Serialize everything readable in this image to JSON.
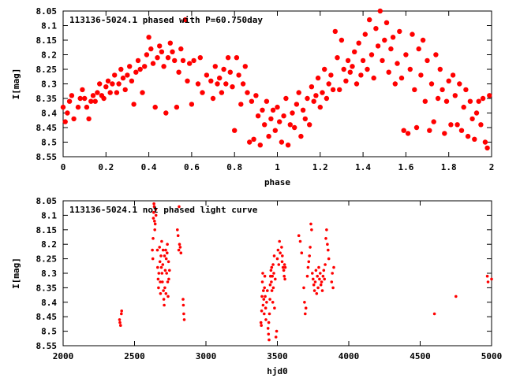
{
  "chart_data": [
    {
      "type": "scatter",
      "title": "113136-5024.1 phased with P=60.750day",
      "xlabel": "phase",
      "ylabel": "I[mag]",
      "xlim": [
        0,
        2
      ],
      "ylim": [
        8.05,
        8.55
      ],
      "y_inverted": true,
      "xticks": [
        "0",
        "0.2",
        "0.4",
        "0.6",
        "0.8",
        "1",
        "1.2",
        "1.4",
        "1.6",
        "1.8",
        "2"
      ],
      "yticks": [
        "8.05",
        "8.1",
        "8.15",
        "8.2",
        "8.25",
        "8.3",
        "8.35",
        "8.4",
        "8.45",
        "8.5",
        "8.55"
      ],
      "marker": "filled circle",
      "color": "#ff0000",
      "points": [
        [
          0.0,
          8.38
        ],
        [
          0.01,
          8.43
        ],
        [
          0.02,
          8.4
        ],
        [
          0.03,
          8.36
        ],
        [
          0.04,
          8.34
        ],
        [
          0.05,
          8.42
        ],
        [
          0.07,
          8.38
        ],
        [
          0.08,
          8.35
        ],
        [
          0.09,
          8.32
        ],
        [
          0.1,
          8.35
        ],
        [
          0.11,
          8.38
        ],
        [
          0.12,
          8.42
        ],
        [
          0.13,
          8.36
        ],
        [
          0.14,
          8.34
        ],
        [
          0.15,
          8.36
        ],
        [
          0.16,
          8.33
        ],
        [
          0.17,
          8.3
        ],
        [
          0.18,
          8.34
        ],
        [
          0.19,
          8.35
        ],
        [
          0.2,
          8.31
        ],
        [
          0.21,
          8.29
        ],
        [
          0.22,
          8.33
        ],
        [
          0.23,
          8.3
        ],
        [
          0.24,
          8.27
        ],
        [
          0.25,
          8.33
        ],
        [
          0.26,
          8.3
        ],
        [
          0.27,
          8.25
        ],
        [
          0.28,
          8.28
        ],
        [
          0.29,
          8.32
        ],
        [
          0.3,
          8.27
        ],
        [
          0.31,
          8.24
        ],
        [
          0.32,
          8.29
        ],
        [
          0.33,
          8.37
        ],
        [
          0.34,
          8.26
        ],
        [
          0.35,
          8.22
        ],
        [
          0.36,
          8.25
        ],
        [
          0.37,
          8.33
        ],
        [
          0.38,
          8.24
        ],
        [
          0.39,
          8.2
        ],
        [
          0.4,
          8.14
        ],
        [
          0.41,
          8.18
        ],
        [
          0.42,
          8.23
        ],
        [
          0.43,
          8.38
        ],
        [
          0.44,
          8.21
        ],
        [
          0.45,
          8.17
        ],
        [
          0.46,
          8.19
        ],
        [
          0.47,
          8.24
        ],
        [
          0.48,
          8.4
        ],
        [
          0.49,
          8.21
        ],
        [
          0.5,
          8.16
        ],
        [
          0.51,
          8.19
        ],
        [
          0.52,
          8.22
        ],
        [
          0.53,
          8.38
        ],
        [
          0.54,
          8.26
        ],
        [
          0.55,
          8.18
        ],
        [
          0.56,
          8.22
        ],
        [
          0.57,
          8.08
        ],
        [
          0.58,
          8.29
        ],
        [
          0.59,
          8.23
        ],
        [
          0.6,
          8.37
        ],
        [
          0.61,
          8.22
        ],
        [
          0.63,
          8.3
        ],
        [
          0.64,
          8.21
        ],
        [
          0.65,
          8.33
        ],
        [
          0.67,
          8.27
        ],
        [
          0.69,
          8.29
        ],
        [
          0.7,
          8.35
        ],
        [
          0.71,
          8.24
        ],
        [
          0.72,
          8.3
        ],
        [
          0.73,
          8.28
        ],
        [
          0.74,
          8.33
        ],
        [
          0.75,
          8.25
        ],
        [
          0.76,
          8.3
        ],
        [
          0.77,
          8.21
        ],
        [
          0.78,
          8.26
        ],
        [
          0.79,
          8.31
        ],
        [
          0.8,
          8.46
        ],
        [
          0.81,
          8.21
        ],
        [
          0.82,
          8.27
        ],
        [
          0.83,
          8.37
        ],
        [
          0.84,
          8.3
        ],
        [
          0.85,
          8.24
        ],
        [
          0.86,
          8.33
        ],
        [
          0.87,
          8.5
        ],
        [
          0.88,
          8.36
        ],
        [
          0.89,
          8.49
        ],
        [
          0.9,
          8.34
        ],
        [
          0.91,
          8.41
        ],
        [
          0.92,
          8.51
        ],
        [
          0.93,
          8.39
        ],
        [
          0.94,
          8.44
        ],
        [
          0.95,
          8.36
        ],
        [
          0.96,
          8.48
        ],
        [
          0.97,
          8.42
        ],
        [
          0.98,
          8.39
        ],
        [
          0.99,
          8.46
        ],
        [
          1.0,
          8.38
        ],
        [
          1.01,
          8.43
        ],
        [
          1.02,
          8.5
        ],
        [
          1.03,
          8.41
        ],
        [
          1.04,
          8.35
        ],
        [
          1.05,
          8.51
        ],
        [
          1.06,
          8.44
        ],
        [
          1.07,
          8.4
        ],
        [
          1.08,
          8.45
        ],
        [
          1.09,
          8.37
        ],
        [
          1.1,
          8.33
        ],
        [
          1.11,
          8.48
        ],
        [
          1.12,
          8.39
        ],
        [
          1.13,
          8.42
        ],
        [
          1.14,
          8.35
        ],
        [
          1.15,
          8.44
        ],
        [
          1.16,
          8.31
        ],
        [
          1.17,
          8.36
        ],
        [
          1.18,
          8.34
        ],
        [
          1.19,
          8.28
        ],
        [
          1.2,
          8.38
        ],
        [
          1.21,
          8.33
        ],
        [
          1.22,
          8.25
        ],
        [
          1.23,
          8.35
        ],
        [
          1.24,
          8.3
        ],
        [
          1.25,
          8.27
        ],
        [
          1.26,
          8.32
        ],
        [
          1.27,
          8.12
        ],
        [
          1.28,
          8.21
        ],
        [
          1.29,
          8.32
        ],
        [
          1.3,
          8.15
        ],
        [
          1.31,
          8.25
        ],
        [
          1.32,
          8.29
        ],
        [
          1.33,
          8.22
        ],
        [
          1.34,
          8.26
        ],
        [
          1.35,
          8.24
        ],
        [
          1.36,
          8.19
        ],
        [
          1.37,
          8.3
        ],
        [
          1.38,
          8.16
        ],
        [
          1.39,
          8.27
        ],
        [
          1.4,
          8.22
        ],
        [
          1.41,
          8.13
        ],
        [
          1.42,
          8.25
        ],
        [
          1.43,
          8.08
        ],
        [
          1.44,
          8.2
        ],
        [
          1.45,
          8.28
        ],
        [
          1.46,
          8.11
        ],
        [
          1.47,
          8.17
        ],
        [
          1.48,
          8.05
        ],
        [
          1.49,
          8.22
        ],
        [
          1.5,
          8.15
        ],
        [
          1.51,
          8.09
        ],
        [
          1.52,
          8.26
        ],
        [
          1.53,
          8.18
        ],
        [
          1.54,
          8.14
        ],
        [
          1.55,
          8.3
        ],
        [
          1.56,
          8.23
        ],
        [
          1.57,
          8.12
        ],
        [
          1.58,
          8.28
        ],
        [
          1.59,
          8.46
        ],
        [
          1.6,
          8.2
        ],
        [
          1.61,
          8.47
        ],
        [
          1.62,
          8.25
        ],
        [
          1.63,
          8.13
        ],
        [
          1.64,
          8.32
        ],
        [
          1.65,
          8.45
        ],
        [
          1.66,
          8.18
        ],
        [
          1.67,
          8.27
        ],
        [
          1.68,
          8.15
        ],
        [
          1.69,
          8.36
        ],
        [
          1.7,
          8.22
        ],
        [
          1.71,
          8.46
        ],
        [
          1.72,
          8.3
        ],
        [
          1.73,
          8.43
        ],
        [
          1.74,
          8.2
        ],
        [
          1.75,
          8.35
        ],
        [
          1.76,
          8.25
        ],
        [
          1.77,
          8.32
        ],
        [
          1.78,
          8.47
        ],
        [
          1.79,
          8.36
        ],
        [
          1.8,
          8.29
        ],
        [
          1.81,
          8.44
        ],
        [
          1.82,
          8.27
        ],
        [
          1.83,
          8.34
        ],
        [
          1.84,
          8.44
        ],
        [
          1.85,
          8.3
        ],
        [
          1.86,
          8.46
        ],
        [
          1.87,
          8.38
        ],
        [
          1.88,
          8.32
        ],
        [
          1.89,
          8.48
        ],
        [
          1.9,
          8.36
        ],
        [
          1.91,
          8.42
        ],
        [
          1.92,
          8.49
        ],
        [
          1.93,
          8.4
        ],
        [
          1.94,
          8.36
        ],
        [
          1.95,
          8.44
        ],
        [
          1.96,
          8.35
        ],
        [
          1.97,
          8.5
        ],
        [
          1.98,
          8.52
        ],
        [
          1.99,
          8.34
        ]
      ]
    },
    {
      "type": "scatter",
      "title": "113136-5024.1 not phased light curve",
      "xlabel": "hjd0",
      "ylabel": "I[mag]",
      "xlim": [
        2000,
        5000
      ],
      "ylim": [
        8.05,
        8.55
      ],
      "y_inverted": true,
      "xticks": [
        "2000",
        "2500",
        "3000",
        "3500",
        "4000",
        "4500",
        "5000"
      ],
      "yticks": [
        "8.05",
        "8.1",
        "8.15",
        "8.2",
        "8.25",
        "8.3",
        "8.35",
        "8.4",
        "8.45",
        "8.5",
        "8.55"
      ],
      "marker": "small dot",
      "color": "#ff0000",
      "points": [
        [
          2395,
          8.46
        ],
        [
          2398,
          8.47
        ],
        [
          2402,
          8.48
        ],
        [
          2408,
          8.44
        ],
        [
          2410,
          8.43
        ],
        [
          2625,
          8.22
        ],
        [
          2628,
          8.25
        ],
        [
          2630,
          8.18
        ],
        [
          2632,
          8.11
        ],
        [
          2634,
          8.09
        ],
        [
          2636,
          8.06
        ],
        [
          2638,
          8.07
        ],
        [
          2640,
          8.12
        ],
        [
          2642,
          8.15
        ],
        [
          2645,
          8.13
        ],
        [
          2648,
          8.08
        ],
        [
          2650,
          8.1
        ],
        [
          2660,
          8.22
        ],
        [
          2662,
          8.28
        ],
        [
          2665,
          8.32
        ],
        [
          2668,
          8.35
        ],
        [
          2670,
          8.3
        ],
        [
          2675,
          8.21
        ],
        [
          2678,
          8.26
        ],
        [
          2680,
          8.33
        ],
        [
          2682,
          8.37
        ],
        [
          2685,
          8.24
        ],
        [
          2688,
          8.28
        ],
        [
          2690,
          8.19
        ],
        [
          2692,
          8.3
        ],
        [
          2695,
          8.33
        ],
        [
          2698,
          8.27
        ],
        [
          2700,
          8.22
        ],
        [
          2702,
          8.36
        ],
        [
          2705,
          8.39
        ],
        [
          2708,
          8.41
        ],
        [
          2710,
          8.24
        ],
        [
          2712,
          8.35
        ],
        [
          2715,
          8.29
        ],
        [
          2718,
          8.22
        ],
        [
          2720,
          8.37
        ],
        [
          2722,
          8.25
        ],
        [
          2725,
          8.3
        ],
        [
          2728,
          8.23
        ],
        [
          2730,
          8.2
        ],
        [
          2732,
          8.33
        ],
        [
          2735,
          8.38
        ],
        [
          2738,
          8.26
        ],
        [
          2740,
          8.32
        ],
        [
          2745,
          8.29
        ],
        [
          2800,
          8.15
        ],
        [
          2805,
          8.17
        ],
        [
          2810,
          8.22
        ],
        [
          2812,
          8.07
        ],
        [
          2815,
          8.2
        ],
        [
          2820,
          8.21
        ],
        [
          2825,
          8.23
        ],
        [
          2840,
          8.39
        ],
        [
          2842,
          8.41
        ],
        [
          2845,
          8.44
        ],
        [
          2848,
          8.46
        ],
        [
          3385,
          8.47
        ],
        [
          3388,
          8.48
        ],
        [
          3390,
          8.43
        ],
        [
          3392,
          8.38
        ],
        [
          3395,
          8.33
        ],
        [
          3398,
          8.3
        ],
        [
          3400,
          8.41
        ],
        [
          3402,
          8.36
        ],
        [
          3405,
          8.39
        ],
        [
          3408,
          8.44
        ],
        [
          3410,
          8.35
        ],
        [
          3412,
          8.31
        ],
        [
          3415,
          8.38
        ],
        [
          3418,
          8.42
        ],
        [
          3420,
          8.46
        ],
        [
          3425,
          8.4
        ],
        [
          3430,
          8.36
        ],
        [
          3435,
          8.49
        ],
        [
          3438,
          8.51
        ],
        [
          3440,
          8.47
        ],
        [
          3442,
          8.53
        ],
        [
          3445,
          8.44
        ],
        [
          3448,
          8.39
        ],
        [
          3450,
          8.34
        ],
        [
          3452,
          8.31
        ],
        [
          3455,
          8.29
        ],
        [
          3458,
          8.33
        ],
        [
          3460,
          8.28
        ],
        [
          3462,
          8.36
        ],
        [
          3465,
          8.31
        ],
        [
          3468,
          8.4
        ],
        [
          3470,
          8.27
        ],
        [
          3472,
          8.35
        ],
        [
          3475,
          8.3
        ],
        [
          3478,
          8.24
        ],
        [
          3480,
          8.42
        ],
        [
          3485,
          8.32
        ],
        [
          3490,
          8.52
        ],
        [
          3495,
          8.5
        ],
        [
          3500,
          8.25
        ],
        [
          3505,
          8.22
        ],
        [
          3510,
          8.27
        ],
        [
          3515,
          8.19
        ],
        [
          3520,
          8.23
        ],
        [
          3530,
          8.21
        ],
        [
          3533,
          8.26
        ],
        [
          3535,
          8.24
        ],
        [
          3540,
          8.28
        ],
        [
          3545,
          8.29
        ],
        [
          3548,
          8.31
        ],
        [
          3550,
          8.27
        ],
        [
          3553,
          8.32
        ],
        [
          3555,
          8.28
        ],
        [
          3650,
          8.17
        ],
        [
          3660,
          8.19
        ],
        [
          3670,
          8.23
        ],
        [
          3685,
          8.35
        ],
        [
          3690,
          8.4
        ],
        [
          3695,
          8.44
        ],
        [
          3700,
          8.42
        ],
        [
          3710,
          8.31
        ],
        [
          3715,
          8.28
        ],
        [
          3720,
          8.26
        ],
        [
          3725,
          8.24
        ],
        [
          3730,
          8.21
        ],
        [
          3735,
          8.13
        ],
        [
          3740,
          8.15
        ],
        [
          3745,
          8.3
        ],
        [
          3750,
          8.32
        ],
        [
          3755,
          8.34
        ],
        [
          3760,
          8.36
        ],
        [
          3765,
          8.33
        ],
        [
          3770,
          8.29
        ],
        [
          3775,
          8.37
        ],
        [
          3780,
          8.31
        ],
        [
          3785,
          8.35
        ],
        [
          3790,
          8.28
        ],
        [
          3795,
          8.32
        ],
        [
          3800,
          8.3
        ],
        [
          3805,
          8.34
        ],
        [
          3810,
          8.33
        ],
        [
          3815,
          8.36
        ],
        [
          3820,
          8.31
        ],
        [
          3825,
          8.29
        ],
        [
          3830,
          8.32
        ],
        [
          3835,
          8.27
        ],
        [
          3840,
          8.18
        ],
        [
          3845,
          8.15
        ],
        [
          3850,
          8.2
        ],
        [
          3855,
          8.22
        ],
        [
          3860,
          8.25
        ],
        [
          3880,
          8.33
        ],
        [
          3885,
          8.3
        ],
        [
          3890,
          8.35
        ],
        [
          3895,
          8.28
        ],
        [
          4600,
          8.44
        ],
        [
          4750,
          8.38
        ],
        [
          4970,
          8.31
        ],
        [
          4975,
          8.33
        ],
        [
          5000,
          8.32
        ]
      ]
    }
  ]
}
